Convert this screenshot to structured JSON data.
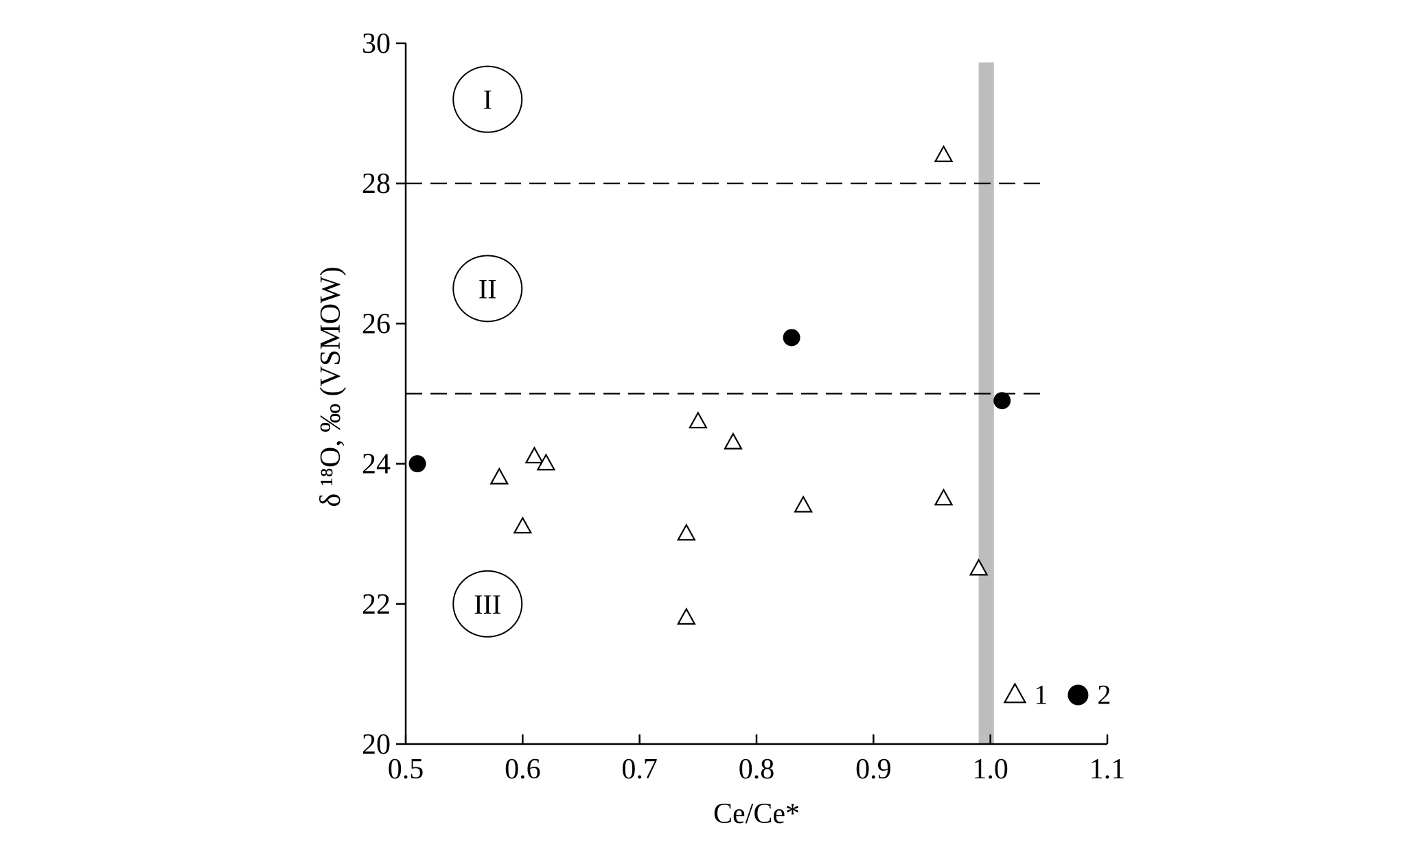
{
  "chart_data": {
    "type": "scatter",
    "title": "",
    "xlabel": "Ce/Ce*",
    "ylabel": "δ ¹⁸O, ‰ (VSMOW)",
    "xlim": [
      0.5,
      1.1
    ],
    "ylim": [
      20,
      30
    ],
    "x_ticks": [
      "0.5",
      "0.6",
      "0.7",
      "0.8",
      "0.9",
      "1.0",
      "1.1"
    ],
    "y_ticks": [
      "20",
      "22",
      "24",
      "26",
      "28",
      "30"
    ],
    "grid": false,
    "series": [
      {
        "name": "1",
        "marker": "open-triangle",
        "points": [
          {
            "x": 0.58,
            "y": 23.8
          },
          {
            "x": 0.6,
            "y": 23.1
          },
          {
            "x": 0.61,
            "y": 24.1
          },
          {
            "x": 0.62,
            "y": 24.0
          },
          {
            "x": 0.74,
            "y": 23.0
          },
          {
            "x": 0.74,
            "y": 21.8
          },
          {
            "x": 0.75,
            "y": 24.6
          },
          {
            "x": 0.78,
            "y": 24.3
          },
          {
            "x": 0.84,
            "y": 23.4
          },
          {
            "x": 0.96,
            "y": 28.4
          },
          {
            "x": 0.96,
            "y": 23.5
          },
          {
            "x": 0.99,
            "y": 22.5
          }
        ]
      },
      {
        "name": "2",
        "marker": "filled-circle",
        "points": [
          {
            "x": 0.51,
            "y": 24.0
          },
          {
            "x": 0.83,
            "y": 25.8
          },
          {
            "x": 1.01,
            "y": 24.9
          }
        ]
      }
    ],
    "reference_lines": [
      {
        "orientation": "horizontal",
        "y": 28,
        "style": "dashed"
      },
      {
        "orientation": "horizontal",
        "y": 25,
        "style": "dashed"
      }
    ],
    "reference_band": {
      "orientation": "vertical",
      "x_from": 0.99,
      "x_to": 1.003,
      "color": "#bdbdbd"
    },
    "zones": [
      {
        "label": "I",
        "x": 0.57,
        "y": 29.2
      },
      {
        "label": "II",
        "x": 0.57,
        "y": 26.5
      },
      {
        "label": "III",
        "x": 0.57,
        "y": 22.0
      }
    ],
    "legend": {
      "placement": "bottom-right",
      "entries": [
        {
          "marker": "open-triangle",
          "label": "1"
        },
        {
          "marker": "filled-circle",
          "label": "2"
        }
      ]
    }
  }
}
